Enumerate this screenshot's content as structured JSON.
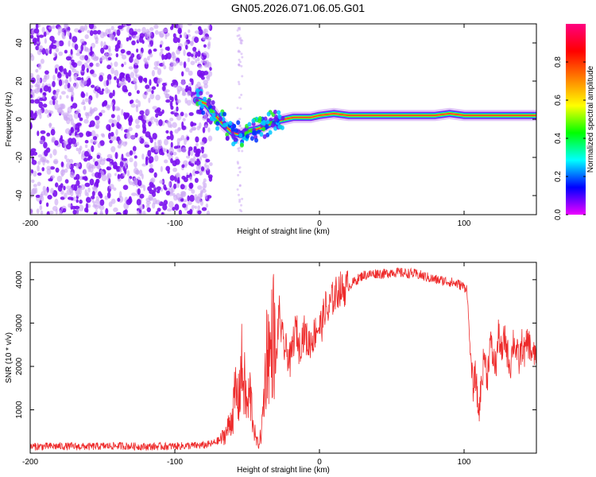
{
  "title": "GN05.2026.071.06.05.G01",
  "colors": {
    "snr_line": "#ee2b2b",
    "axis": "#000000",
    "spectro_noise": "#7a10ee",
    "spectro_faint": "#c9a4f4"
  },
  "chart_data": [
    {
      "type": "heatmap",
      "name": "spectrogram",
      "xlabel": "Height of straight line (km)",
      "ylabel": "Frequency (Hz)",
      "xlim": [
        -200,
        150
      ],
      "ylim": [
        -50,
        50
      ],
      "xticks": [
        -200,
        -100,
        0,
        100
      ],
      "yticks": [
        -40,
        -20,
        0,
        20,
        40
      ],
      "xtick_labels": [
        "-200",
        "-100",
        "0",
        "100"
      ],
      "ytick_labels": [
        "-40",
        "-20",
        "0",
        "20",
        "40"
      ],
      "ridge": {
        "x": [
          -85,
          -78,
          -72,
          -66,
          -60,
          -54,
          -48,
          -42,
          -36,
          -30,
          -24,
          -18,
          -12,
          -6,
          0,
          10,
          20,
          40,
          60,
          80,
          90,
          100,
          120,
          150
        ],
        "y": [
          10,
          8,
          2,
          -3,
          -7,
          -8,
          -6,
          -5,
          -3,
          -1,
          0,
          1,
          1,
          1,
          2,
          3,
          2,
          2,
          2,
          2,
          3,
          2,
          2,
          2
        ]
      },
      "colorbar": {
        "label": "Normalized spectral amplitude",
        "range": [
          0,
          1
        ],
        "ticks": [
          0.0,
          0.2,
          0.4,
          0.6,
          0.8
        ],
        "tick_labels": [
          "0.0",
          "0.2",
          "0.4",
          "0.6",
          "0.8"
        ],
        "colormap": [
          "#ee00ff",
          "#0000ff",
          "#00ffff",
          "#00ff00",
          "#ffff00",
          "#ff8000",
          "#ff0000",
          "#ff0080"
        ]
      }
    },
    {
      "type": "line",
      "name": "snr",
      "xlabel": "Height of straight line (km)",
      "ylabel": "SNR (10 * v/v)",
      "xlim": [
        -200,
        150
      ],
      "ylim": [
        0,
        4400
      ],
      "xticks": [
        -200,
        -100,
        0,
        100
      ],
      "yticks": [
        1000,
        2000,
        3000,
        4000
      ],
      "xtick_labels": [
        "-200",
        "-100",
        "0",
        "100"
      ],
      "ytick_labels": [
        "1000",
        "2000",
        "3000",
        "4000"
      ],
      "series": [
        {
          "name": "SNR",
          "x": [
            -200,
            -180,
            -160,
            -140,
            -120,
            -100,
            -80,
            -74,
            -68,
            -64,
            -60,
            -58,
            -56,
            -54,
            -52,
            -50,
            -48,
            -46,
            -44,
            -42,
            -40,
            -38,
            -36,
            -34,
            -32,
            -30,
            -28,
            -26,
            -24,
            -22,
            -20,
            -18,
            -16,
            -14,
            -12,
            -10,
            -8,
            -6,
            -4,
            -2,
            0,
            2,
            4,
            6,
            8,
            10,
            12,
            14,
            16,
            18,
            20,
            22,
            24,
            26,
            28,
            30,
            35,
            40,
            45,
            50,
            55,
            60,
            65,
            70,
            75,
            80,
            85,
            90,
            93,
            96,
            99,
            102,
            104,
            106,
            108,
            110,
            112,
            114,
            116,
            118,
            120,
            122,
            124,
            126,
            128,
            130,
            132,
            134,
            136,
            138,
            140,
            142,
            144,
            146,
            148,
            150
          ],
          "y": [
            150,
            160,
            150,
            170,
            150,
            160,
            180,
            220,
            320,
            500,
            900,
            1400,
            1200,
            2000,
            1600,
            1000,
            1400,
            800,
            300,
            200,
            500,
            1500,
            2600,
            2200,
            2900,
            2000,
            3300,
            2700,
            2400,
            2300,
            2100,
            2600,
            2900,
            2400,
            2700,
            2800,
            2500,
            2600,
            2700,
            2900,
            2900,
            3000,
            3400,
            3200,
            3500,
            3600,
            3700,
            3800,
            3750,
            3800,
            3850,
            3900,
            3950,
            4000,
            4050,
            4100,
            4120,
            4150,
            4130,
            4180,
            4160,
            4150,
            4140,
            4100,
            4050,
            4000,
            3980,
            3950,
            3920,
            3900,
            3850,
            3800,
            2500,
            1500,
            1800,
            900,
            1600,
            2300,
            1700,
            2600,
            2200,
            2000,
            2800,
            2200,
            2700,
            2300,
            2000,
            2600,
            2400,
            2100,
            2500,
            2300,
            2600,
            2400,
            2200,
            2400
          ]
        }
      ]
    }
  ]
}
